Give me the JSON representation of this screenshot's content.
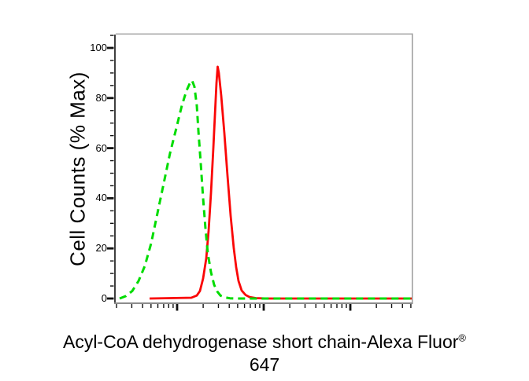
{
  "figure": {
    "caption_line1": "Acyl-CoA dehydrogenase short chain-Alexa Fluor",
    "caption_registered_mark": "®",
    "caption_line2": "647"
  },
  "chart_data": {
    "type": "line",
    "subtype": "flow-cytometry-histogram-overlay",
    "title": "",
    "legend": "none",
    "grid": false,
    "y_axis": {
      "title": "Cell Counts (% Max)",
      "major_ticks": [
        0,
        20,
        40,
        60,
        80,
        100
      ],
      "minor_tick_step": 5,
      "range": [
        0,
        105
      ],
      "tick_labels_shown": true
    },
    "x_axis": {
      "title": "Acyl-CoA dehydrogenase short chain-Alexa Fluor® 647",
      "scale": "log",
      "tick_labels_shown": false,
      "decade_fractions": [
        -0.0853,
        0.2074,
        0.5,
        0.7926
      ],
      "decade_width_fraction": 0.2926
    },
    "series": [
      {
        "name": "red-solid-curve",
        "style": "solid",
        "color": "#FA0606",
        "stroke_width": 2.8,
        "dash": "",
        "peak": {
          "x_fraction": 0.344,
          "y_percent": 92.5
        },
        "points": [
          [
            0.1144,
            0
          ],
          [
            0.2553,
            0.3
          ],
          [
            0.2739,
            1.2
          ],
          [
            0.2846,
            3
          ],
          [
            0.2952,
            8
          ],
          [
            0.3059,
            16
          ],
          [
            0.3138,
            27
          ],
          [
            0.3218,
            42
          ],
          [
            0.3298,
            60
          ],
          [
            0.3351,
            73
          ],
          [
            0.3404,
            86
          ],
          [
            0.3444,
            92.5
          ],
          [
            0.3484,
            90
          ],
          [
            0.3564,
            81
          ],
          [
            0.367,
            66
          ],
          [
            0.3777,
            49
          ],
          [
            0.3883,
            33
          ],
          [
            0.3989,
            20
          ],
          [
            0.4069,
            12.5
          ],
          [
            0.4149,
            7
          ],
          [
            0.4255,
            3.2
          ],
          [
            0.4388,
            1.4
          ],
          [
            0.4521,
            0.6
          ],
          [
            0.4734,
            0.15
          ],
          [
            0.5133,
            0
          ],
          [
            1.0,
            0
          ]
        ]
      },
      {
        "name": "green-dashed-curve",
        "style": "dashed",
        "color": "#00DC00",
        "stroke_width": 3,
        "dash": "9 6",
        "peak": {
          "x_fraction": 0.258,
          "y_percent": 87
        },
        "points": [
          [
            0.0133,
            0
          ],
          [
            0.0346,
            1
          ],
          [
            0.0559,
            3
          ],
          [
            0.0771,
            7
          ],
          [
            0.0984,
            13
          ],
          [
            0.1197,
            22
          ],
          [
            0.141,
            34
          ],
          [
            0.1622,
            46
          ],
          [
            0.1835,
            58
          ],
          [
            0.2048,
            68
          ],
          [
            0.2234,
            77
          ],
          [
            0.2394,
            83
          ],
          [
            0.2527,
            86.5
          ],
          [
            0.258,
            87
          ],
          [
            0.266,
            84.5
          ],
          [
            0.2739,
            77
          ],
          [
            0.2793,
            67
          ],
          [
            0.2872,
            54
          ],
          [
            0.2952,
            40
          ],
          [
            0.3032,
            28
          ],
          [
            0.3112,
            18
          ],
          [
            0.3218,
            10.5
          ],
          [
            0.3324,
            5.5
          ],
          [
            0.3431,
            2.8
          ],
          [
            0.3537,
            1.2
          ],
          [
            0.367,
            0.5
          ],
          [
            0.3856,
            0.1
          ],
          [
            0.4069,
            0
          ],
          [
            1.0,
            0
          ]
        ]
      }
    ],
    "colors": {
      "background": "#ffffff",
      "axis_left": "#3f3f3f",
      "axis_bottom": "#8c8c8c",
      "frame_top": "#a8a8a8",
      "frame_right": "#9a9a9a",
      "tick": "#111111",
      "text": "#000000"
    }
  }
}
